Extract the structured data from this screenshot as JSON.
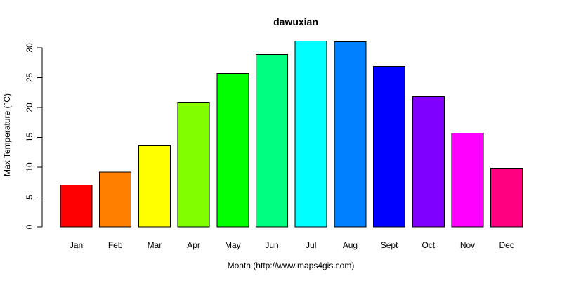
{
  "chart_data": {
    "type": "bar",
    "title": "dawuxian",
    "xlabel": "Month (http://www.maps4gis.com)",
    "ylabel": "Max Temperature (°C)",
    "categories": [
      "Jan",
      "Feb",
      "Mar",
      "Apr",
      "May",
      "Jun",
      "Jul",
      "Aug",
      "Sept",
      "Oct",
      "Nov",
      "Dec"
    ],
    "values": [
      7.0,
      9.2,
      13.6,
      20.9,
      25.7,
      28.9,
      31.1,
      31.0,
      26.9,
      21.8,
      15.7,
      9.8
    ],
    "colors": [
      "#FF0000",
      "#FF8000",
      "#FFFF00",
      "#80FF00",
      "#00FF00",
      "#00FF80",
      "#00FFFF",
      "#0080FF",
      "#0000FF",
      "#8000FF",
      "#FF00FF",
      "#FF0080"
    ],
    "yticks": [
      0,
      5,
      10,
      15,
      20,
      25,
      30
    ],
    "ylim": [
      0,
      32
    ],
    "grid": false,
    "legend": "none"
  }
}
